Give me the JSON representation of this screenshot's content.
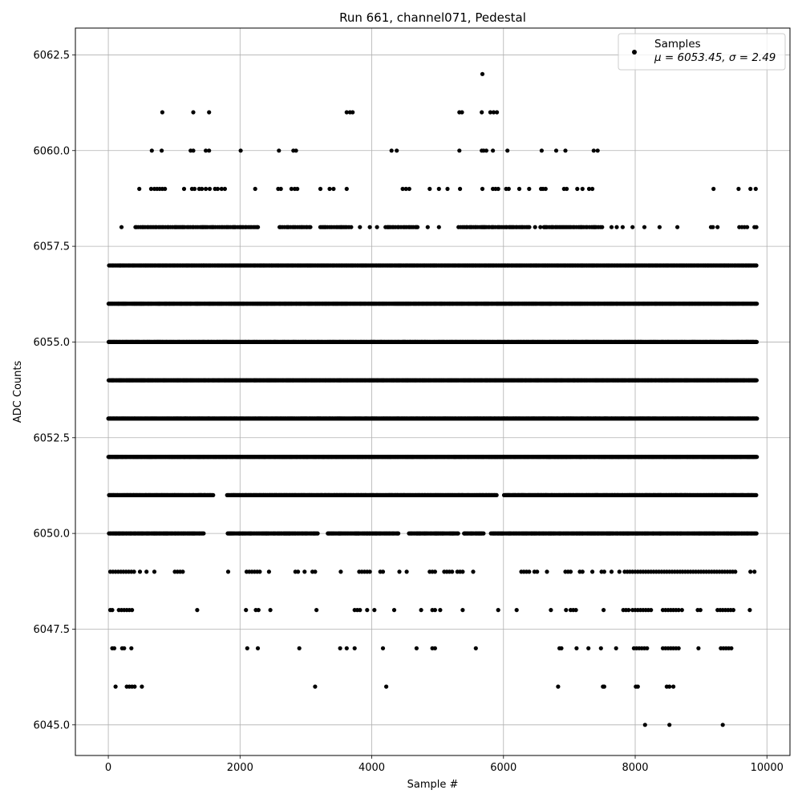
{
  "chart_data": {
    "type": "scatter",
    "title": "Run 661, channel071, Pedestal",
    "xlabel": "Sample #",
    "ylabel": "ADC Counts",
    "xlim": [
      -500,
      10350
    ],
    "ylim": [
      6044.2,
      6063.2
    ],
    "xticks": [
      0,
      2000,
      4000,
      6000,
      8000,
      10000
    ],
    "xtick_labels": [
      "0",
      "2000",
      "4000",
      "6000",
      "8000",
      "10000"
    ],
    "yticks": [
      6045.0,
      6047.5,
      6050.0,
      6052.5,
      6055.0,
      6057.5,
      6060.0,
      6062.5
    ],
    "ytick_labels": [
      "6045.0",
      "6047.5",
      "6050.0",
      "6052.5",
      "6055.0",
      "6057.5",
      "6060.0",
      "6062.5"
    ],
    "grid": true,
    "legend_position": "top-right",
    "marker_color": "#000000",
    "series": [
      {
        "name": "Samples",
        "stats_label": "μ = 6053.45, σ = 2.49",
        "n_samples": 9850,
        "x_range": [
          0,
          9850
        ],
        "levels": [
          {
            "y": 6045,
            "x": [
              8150,
              8520,
              9330
            ]
          },
          {
            "y": 6046,
            "x": [
              110,
              280,
              320,
              360,
              400,
              510,
              3140,
              4220,
              6830,
              7510,
              7530,
              8010,
              8040,
              8480,
              8520,
              8580
            ]
          },
          {
            "y": 6047,
            "x": [
              60,
              90,
              210,
              240,
              350,
              2110,
              2270,
              2900,
              3520,
              3620,
              3740,
              4170,
              4680,
              4920,
              4960,
              5580,
              6850,
              6880,
              7110,
              7290,
              7480,
              7710,
              7980,
              8020,
              8060,
              8100,
              8140,
              8180,
              8420,
              8460,
              8500,
              8540,
              8580,
              8620,
              8660,
              8960,
              9300,
              9340,
              9380,
              9420,
              9460
            ]
          },
          {
            "y": 6048,
            "x": [
              30,
              60,
              160,
              200,
              240,
              280,
              320,
              360,
              1350,
              2090,
              2240,
              2280,
              2460,
              3160,
              3740,
              3780,
              3820,
              3930,
              4040,
              4340,
              4750,
              4920,
              4960,
              5040,
              5380,
              5920,
              6200,
              6720,
              6950,
              7020,
              7060,
              7100,
              7520,
              7820,
              7860,
              7900,
              7960,
              8000,
              8040,
              8080,
              8120,
              8160,
              8200,
              8240,
              8420,
              8460,
              8500,
              8540,
              8580,
              8620,
              8660,
              8710,
              8950,
              8990,
              9250,
              9290,
              9330,
              9370,
              9410,
              9450,
              9490,
              9740
            ]
          },
          {
            "y": 6049,
            "x": [
              30,
              70,
              110,
              150,
              190,
              230,
              270,
              310,
              350,
              390,
              480,
              580,
              700,
              1010,
              1050,
              1090,
              1130,
              1820,
              2100,
              2140,
              2180,
              2220,
              2260,
              2300,
              2440,
              2840,
              2880,
              2980,
              3100,
              3140,
              3530,
              3810,
              3850,
              3890,
              3930,
              3970,
              4130,
              4170,
              4420,
              4530,
              4880,
              4920,
              4960,
              5100,
              5140,
              5180,
              5220,
              5300,
              5340,
              5380,
              5540,
              6270,
              6310,
              6350,
              6390,
              6470,
              6510,
              6660,
              6940,
              6980,
              7020,
              7160,
              7200,
              7350,
              7490,
              7530,
              7640,
              7760,
              7840,
              7880,
              7920,
              7960,
              8000,
              8040,
              8080,
              8120,
              8160,
              8200,
              8240,
              8280,
              8320,
              8360,
              8400,
              8440,
              8480,
              8520,
              8560,
              8600,
              8640,
              8680,
              8720,
              8760,
              8800,
              8840,
              8880,
              8920,
              8960,
              9000,
              9040,
              9080,
              9120,
              9160,
              9200,
              9240,
              9280,
              9320,
              9360,
              9400,
              9440,
              9480,
              9520,
              9750,
              9810
            ]
          }
        ],
        "dense_levels": [
          {
            "y": 6050,
            "coverage": [
              [
                0,
                1450
              ],
              [
                1800,
                3180
              ],
              [
                3330,
                4410
              ],
              [
                4560,
                5320
              ],
              [
                5400,
                5700
              ],
              [
                5800,
                9850
              ]
            ],
            "spacing": 16
          },
          {
            "y": 6051,
            "coverage": [
              [
                0,
                1600
              ],
              [
                1800,
                5900
              ],
              [
                6000,
                9850
              ]
            ],
            "spacing": 12
          },
          {
            "y": 6052,
            "coverage": [
              [
                0,
                9850
              ]
            ],
            "spacing": 8
          },
          {
            "y": 6053,
            "coverage": [
              [
                0,
                9850
              ]
            ],
            "spacing": 8
          },
          {
            "y": 6054,
            "coverage": [
              [
                0,
                9850
              ]
            ],
            "spacing": 8
          },
          {
            "y": 6055,
            "coverage": [
              [
                0,
                9850
              ]
            ],
            "spacing": 9
          },
          {
            "y": 6056,
            "coverage": [
              [
                0,
                9850
              ]
            ],
            "spacing": 11
          },
          {
            "y": 6057,
            "coverage": [
              [
                0,
                9850
              ]
            ],
            "spacing": 15
          },
          {
            "y": 6058,
            "coverage": [
              [
                400,
                2300
              ],
              [
                2600,
                3100
              ],
              [
                3200,
                3700
              ],
              [
                4200,
                4700
              ],
              [
                5300,
                6400
              ],
              [
                6600,
                7500
              ]
            ],
            "spacing": 24
          }
        ],
        "level_6058_extra_x": [
          200,
          3820,
          3970,
          4080,
          4850,
          5020,
          6480,
          6560,
          7640,
          7720,
          7810,
          7960,
          8140,
          8370,
          8640,
          9150,
          9180,
          9250,
          9580,
          9620,
          9660,
          9700,
          9810,
          9840
        ],
        "level_6059_x": [
          470,
          650,
          700,
          740,
          780,
          820,
          860,
          1150,
          1270,
          1310,
          1380,
          1420,
          1480,
          1540,
          1620,
          1660,
          1720,
          1770,
          2230,
          2580,
          2620,
          2780,
          2830,
          2870,
          3220,
          3360,
          3420,
          3620,
          4470,
          4520,
          4570,
          4880,
          5020,
          5150,
          5340,
          5680,
          5840,
          5880,
          5920,
          6040,
          6080,
          6240,
          6390,
          6570,
          6600,
          6640,
          6920,
          6960,
          7120,
          7200,
          7300,
          7350,
          9190,
          9570,
          9750,
          9830
        ],
        "level_6060_x": [
          660,
          810,
          1250,
          1290,
          1480,
          1530,
          2010,
          2590,
          2810,
          2850,
          4300,
          4380,
          5330,
          5670,
          5700,
          5740,
          5840,
          6060,
          6580,
          6800,
          6940,
          7370,
          7430
        ],
        "level_6061_x": [
          820,
          1290,
          1530,
          3620,
          3670,
          3710,
          5330,
          5370,
          5670,
          5800,
          5850,
          5900
        ],
        "level_6062_x": [
          5680
        ]
      }
    ]
  }
}
